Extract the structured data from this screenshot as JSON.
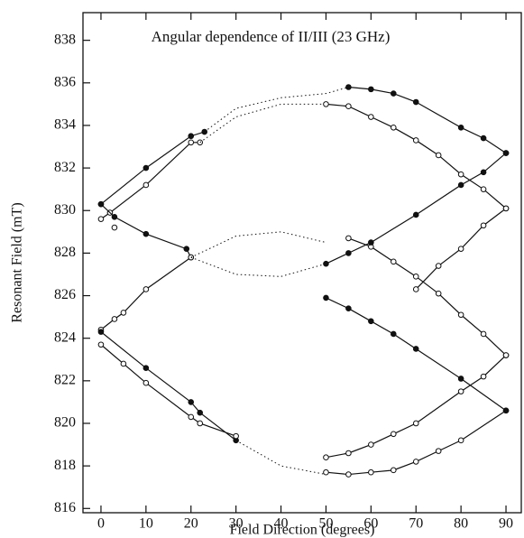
{
  "chart_data": {
    "type": "line",
    "title": "Angular dependence of II/III (23 GHz)",
    "x_label": "Field Direction (degrees)",
    "y_label": "Resonant Field (mT)",
    "xlim": [
      -4,
      93.4
    ],
    "ylim": [
      815.8,
      839.3
    ],
    "xticks": [
      0,
      10,
      20,
      30,
      40,
      50,
      60,
      70,
      80,
      90
    ],
    "yticks": [
      816,
      818,
      820,
      822,
      824,
      826,
      828,
      830,
      832,
      834,
      836,
      838
    ],
    "color": "#111111",
    "series": [
      {
        "style": "solid",
        "marker": "filled",
        "x": [
          0,
          10,
          20,
          23
        ],
        "values": [
          830.3,
          832,
          833.5,
          833.7
        ]
      },
      {
        "style": "solid",
        "marker": "open",
        "x": [
          0,
          2,
          10,
          20,
          22
        ],
        "values": [
          829.6,
          829.9,
          831.2,
          833.2,
          833.2
        ]
      },
      {
        "style": "dotted",
        "marker": "none",
        "x": [
          23,
          30,
          40,
          50,
          55
        ],
        "values": [
          833.7,
          834.8,
          835.3,
          835.5,
          835.8
        ]
      },
      {
        "style": "dotted",
        "marker": "none",
        "x": [
          22,
          30,
          40,
          50
        ],
        "values": [
          833.2,
          834.4,
          835,
          835
        ]
      },
      {
        "style": "solid",
        "marker": "filled",
        "x": [
          55,
          60,
          65,
          70,
          80,
          85,
          90
        ],
        "values": [
          835.8,
          835.7,
          835.5,
          835.1,
          833.9,
          833.4,
          832.7
        ]
      },
      {
        "style": "solid",
        "marker": "open",
        "x": [
          50,
          55,
          60,
          65,
          70,
          75,
          80,
          85,
          90
        ],
        "values": [
          835,
          834.9,
          834.4,
          833.9,
          833.3,
          832.6,
          831.7,
          831,
          830.1
        ]
      },
      {
        "style": "solid",
        "marker": "filled",
        "x": [
          0,
          3,
          10,
          19,
          20
        ],
        "values": [
          830.3,
          829.7,
          828.9,
          828.2,
          827.8
        ]
      },
      {
        "style": "solid",
        "marker": "open",
        "x": [
          0,
          3,
          5,
          10,
          20
        ],
        "values": [
          824.4,
          824.9,
          825.2,
          826.3,
          827.8
        ]
      },
      {
        "style": "none",
        "marker": "open",
        "x": [
          3
        ],
        "values": [
          829.2
        ]
      },
      {
        "style": "dotted",
        "marker": "none",
        "x": [
          20,
          30,
          40,
          50
        ],
        "values": [
          827.8,
          828.8,
          829,
          828.5
        ]
      },
      {
        "style": "dotted",
        "marker": "none",
        "x": [
          20,
          30,
          40,
          50
        ],
        "values": [
          827.8,
          827,
          826.9,
          827.5
        ]
      },
      {
        "style": "solid",
        "marker": "filled",
        "x": [
          0,
          10,
          20,
          22,
          30
        ],
        "values": [
          824.3,
          822.6,
          821,
          820.5,
          819.2
        ]
      },
      {
        "style": "solid",
        "marker": "open",
        "x": [
          0,
          5,
          10,
          20,
          22,
          30
        ],
        "values": [
          823.7,
          822.8,
          821.9,
          820.3,
          820,
          819.4
        ]
      },
      {
        "style": "dotted",
        "marker": "none",
        "x": [
          30,
          40,
          50
        ],
        "values": [
          819.2,
          818,
          817.6
        ]
      },
      {
        "style": "solid",
        "marker": "open",
        "x": [
          50,
          55,
          60,
          65,
          70,
          80,
          85,
          90
        ],
        "values": [
          818.4,
          818.6,
          819,
          819.5,
          820,
          821.5,
          822.2,
          823.2
        ]
      },
      {
        "style": "solid",
        "marker": "open",
        "x": [
          50,
          55,
          60,
          65,
          70,
          75,
          80,
          90
        ],
        "values": [
          817.7,
          817.6,
          817.7,
          817.8,
          818.2,
          818.7,
          819.2,
          820.6
        ]
      },
      {
        "style": "solid",
        "marker": "filled",
        "x": [
          50,
          55,
          60,
          65,
          70,
          80,
          90
        ],
        "values": [
          825.9,
          825.4,
          824.8,
          824.2,
          823.5,
          822.1,
          820.6
        ]
      },
      {
        "style": "solid",
        "marker": "open",
        "x": [
          55,
          60,
          65,
          70,
          75,
          80,
          85,
          90
        ],
        "values": [
          828.7,
          828.3,
          827.6,
          826.9,
          826.1,
          825.1,
          824.2,
          823.2
        ]
      },
      {
        "style": "solid",
        "marker": "filled",
        "x": [
          50,
          55,
          60,
          70,
          80,
          85,
          90
        ],
        "values": [
          827.5,
          828,
          828.5,
          829.8,
          831.2,
          831.8,
          832.7
        ]
      },
      {
        "style": "solid",
        "marker": "open",
        "x": [
          70,
          75,
          80,
          85,
          90
        ],
        "values": [
          826.3,
          827.4,
          828.2,
          829.3,
          830.1
        ]
      }
    ]
  }
}
